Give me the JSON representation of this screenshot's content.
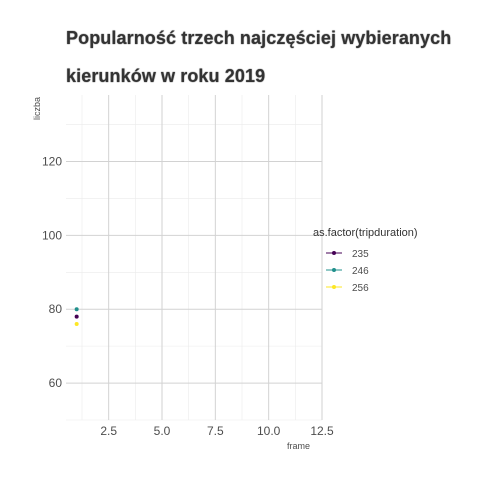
{
  "chart_data": {
    "type": "scatter",
    "title_lines": [
      "Popularność trzech najczęściej wybieranych",
      "kierunków w roku 2019"
    ],
    "xlabel": "frame",
    "ylabel": "liczba",
    "xlim": [
      0.5,
      12.5
    ],
    "ylim": [
      50,
      138
    ],
    "x_ticks": [
      2.5,
      5.0,
      7.5,
      10.0,
      12.5
    ],
    "x_tick_labels": [
      "2.5",
      "5.0",
      "7.5",
      "10.0",
      "12.5"
    ],
    "y_ticks": [
      60,
      80,
      100,
      120
    ],
    "y_tick_labels": [
      "60",
      "80",
      "100",
      "120"
    ],
    "grid": true,
    "legend": {
      "title": "as.factor(tripduration)",
      "placement": "right"
    },
    "series": [
      {
        "name": "235",
        "color": "#440154",
        "points": [
          [
            1,
            78
          ]
        ]
      },
      {
        "name": "246",
        "color": "#21908C",
        "points": [
          [
            1,
            80
          ]
        ]
      },
      {
        "name": "256",
        "color": "#FDE725",
        "points": [
          [
            1,
            76
          ]
        ]
      }
    ]
  }
}
